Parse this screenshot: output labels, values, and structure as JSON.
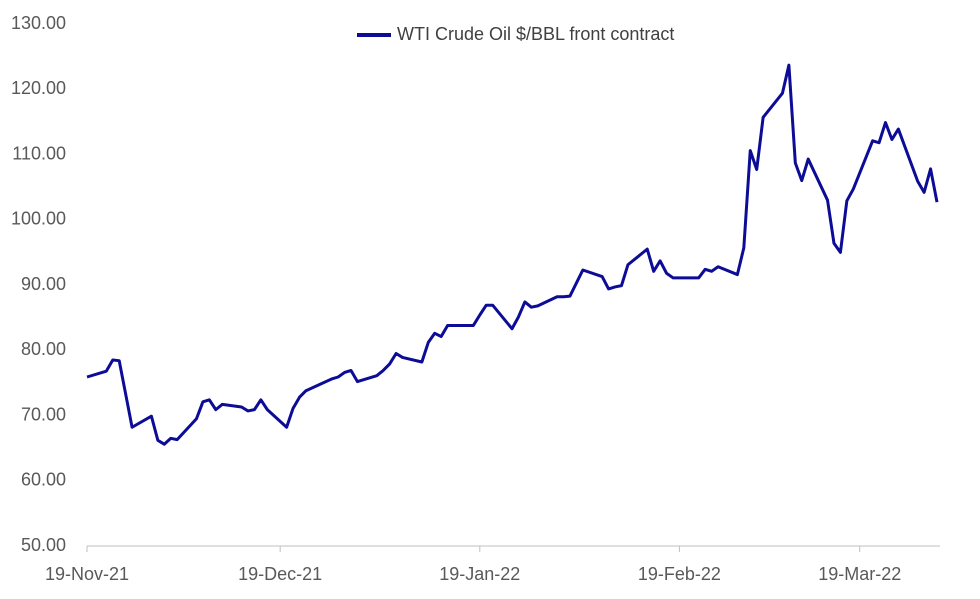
{
  "chart_data": {
    "type": "line",
    "x": [
      "2021-11-19",
      "2021-11-22",
      "2021-11-23",
      "2021-11-24",
      "2021-11-26",
      "2021-11-29",
      "2021-11-30",
      "2021-12-01",
      "2021-12-02",
      "2021-12-03",
      "2021-12-06",
      "2021-12-07",
      "2021-12-08",
      "2021-12-09",
      "2021-12-10",
      "2021-12-13",
      "2021-12-14",
      "2021-12-15",
      "2021-12-16",
      "2021-12-17",
      "2021-12-20",
      "2021-12-21",
      "2021-12-22",
      "2021-12-23",
      "2021-12-27",
      "2021-12-28",
      "2021-12-29",
      "2021-12-30",
      "2021-12-31",
      "2022-01-03",
      "2022-01-04",
      "2022-01-05",
      "2022-01-06",
      "2022-01-07",
      "2022-01-10",
      "2022-01-11",
      "2022-01-12",
      "2022-01-13",
      "2022-01-14",
      "2022-01-18",
      "2022-01-19",
      "2022-01-20",
      "2022-01-21",
      "2022-01-24",
      "2022-01-25",
      "2022-01-26",
      "2022-01-27",
      "2022-01-28",
      "2022-01-31",
      "2022-02-01",
      "2022-02-02",
      "2022-02-03",
      "2022-02-04",
      "2022-02-07",
      "2022-02-08",
      "2022-02-09",
      "2022-02-10",
      "2022-02-11",
      "2022-02-14",
      "2022-02-15",
      "2022-02-16",
      "2022-02-17",
      "2022-02-18",
      "2022-02-22",
      "2022-02-23",
      "2022-02-24",
      "2022-02-25",
      "2022-02-28",
      "2022-03-01",
      "2022-03-02",
      "2022-03-03",
      "2022-03-04",
      "2022-03-07",
      "2022-03-08",
      "2022-03-09",
      "2022-03-10",
      "2022-03-11",
      "2022-03-14",
      "2022-03-15",
      "2022-03-16",
      "2022-03-17",
      "2022-03-18",
      "2022-03-21",
      "2022-03-22",
      "2022-03-23",
      "2022-03-24",
      "2022-03-25",
      "2022-03-28",
      "2022-03-29",
      "2022-03-30",
      "2022-03-31"
    ],
    "series": [
      {
        "name": "WTI Crude Oil $/BBL front contract",
        "color": "#0c0c96",
        "values": [
          75.9,
          76.8,
          78.5,
          78.4,
          68.2,
          69.9,
          66.2,
          65.6,
          66.5,
          66.3,
          69.5,
          72.1,
          72.4,
          70.9,
          71.7,
          71.3,
          70.7,
          70.9,
          72.4,
          70.9,
          68.2,
          71.1,
          72.8,
          73.8,
          75.6,
          75.9,
          76.6,
          76.9,
          75.2,
          76.1,
          76.9,
          77.9,
          79.5,
          78.9,
          78.2,
          81.2,
          82.6,
          82.1,
          83.8,
          83.8,
          85.4,
          86.9,
          86.9,
          83.3,
          85.1,
          87.4,
          86.6,
          86.8,
          88.2,
          88.2,
          88.3,
          90.3,
          92.3,
          91.3,
          89.4,
          89.7,
          89.9,
          93.1,
          95.5,
          92.1,
          93.7,
          91.8,
          91.1,
          91.1,
          92.4,
          92.1,
          92.8,
          91.6,
          95.7,
          110.6,
          107.7,
          115.7,
          119.4,
          123.7,
          108.7,
          106.0,
          109.3,
          103.0,
          96.4,
          95.0,
          102.9,
          104.7,
          112.1,
          111.8,
          114.9,
          112.3,
          113.9,
          105.9,
          104.2,
          107.8,
          102.7
        ]
      }
    ],
    "xlim": [
      "2021-11-19",
      "2022-03-31"
    ],
    "xticks": [
      {
        "value": "2021-11-19",
        "label": "19-Nov-21"
      },
      {
        "value": "2021-12-19",
        "label": "19-Dec-21"
      },
      {
        "value": "2022-01-19",
        "label": "19-Jan-22"
      },
      {
        "value": "2022-02-19",
        "label": "19-Feb-22"
      },
      {
        "value": "2022-03-19",
        "label": "19-Mar-22"
      }
    ],
    "ylim": [
      50,
      130
    ],
    "yticks": [
      {
        "value": 50,
        "label": "50.00"
      },
      {
        "value": 60,
        "label": "60.00"
      },
      {
        "value": 70,
        "label": "70.00"
      },
      {
        "value": 80,
        "label": "80.00"
      },
      {
        "value": 90,
        "label": "90.00"
      },
      {
        "value": 100,
        "label": "100.00"
      },
      {
        "value": 110,
        "label": "110.00"
      },
      {
        "value": 120,
        "label": "120.00"
      },
      {
        "value": 130,
        "label": "130.00"
      }
    ],
    "grid": false,
    "legend": "top"
  }
}
